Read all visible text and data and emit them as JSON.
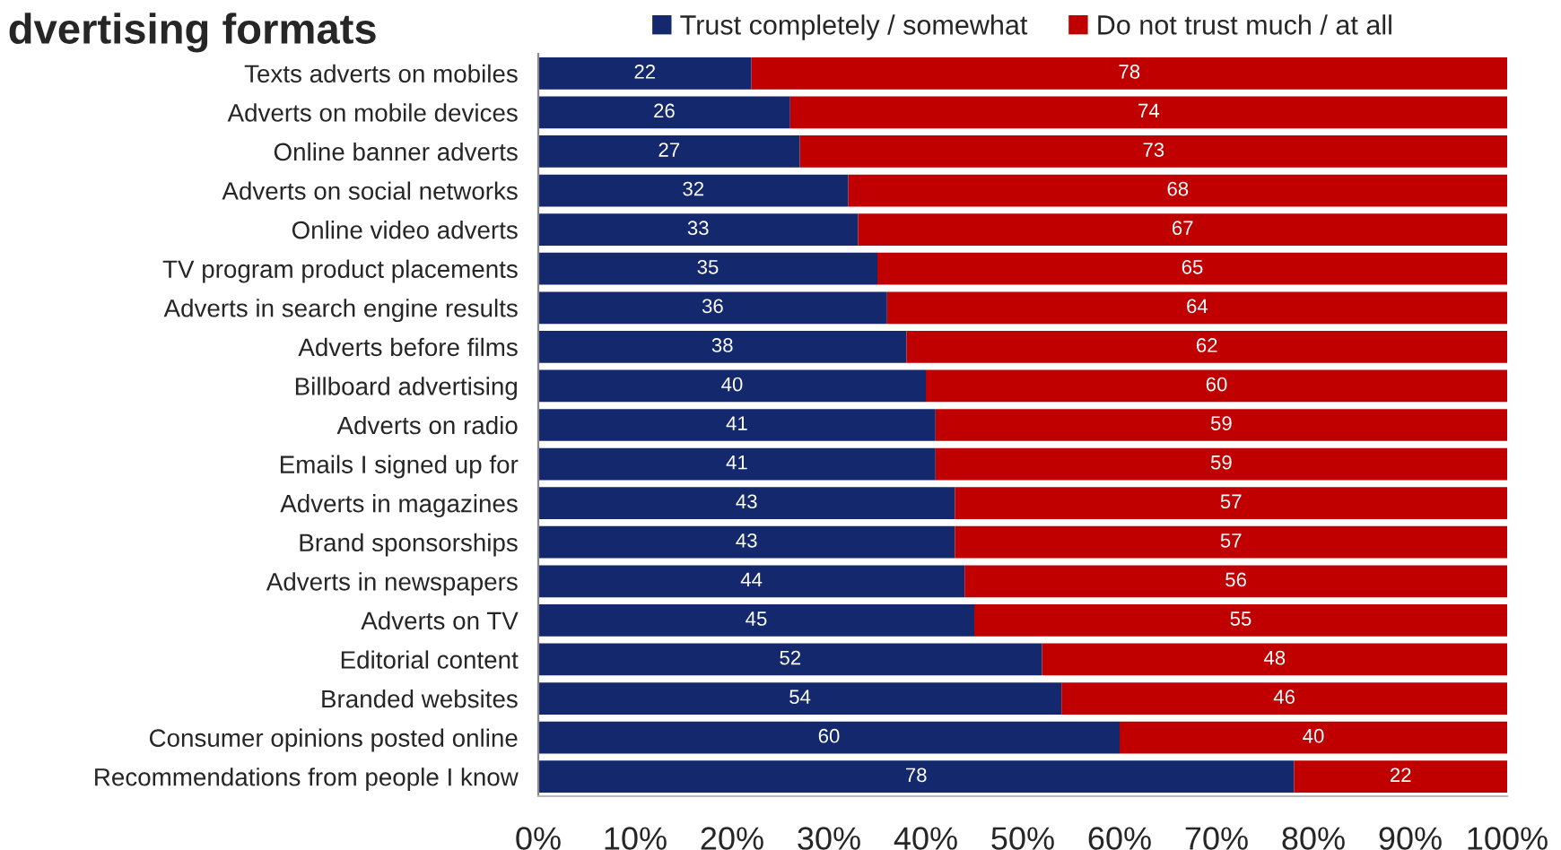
{
  "chart_data": {
    "type": "bar",
    "orientation": "horizontal",
    "stacked": true,
    "title": "dvertising formats",
    "categories": [
      "Texts adverts on mobiles",
      "Adverts on mobile devices",
      "Online banner adverts",
      "Adverts on social networks",
      "Online video adverts",
      "TV program product placements",
      "Adverts in search engine results",
      "Adverts before films",
      "Billboard advertising",
      "Adverts on radio",
      "Emails I signed up for",
      "Adverts in magazines",
      "Brand sponsorships",
      "Adverts in newspapers",
      "Adverts on TV",
      "Editorial content",
      "Branded websites",
      "Consumer opinions posted online",
      "Recommendations from people I know"
    ],
    "series": [
      {
        "name": "Trust completely / somewhat",
        "color": "#14286e",
        "values": [
          22,
          26,
          27,
          32,
          33,
          35,
          36,
          38,
          40,
          41,
          41,
          43,
          43,
          44,
          45,
          52,
          54,
          60,
          78
        ]
      },
      {
        "name": "Do not trust much / at all",
        "color": "#c00000",
        "values": [
          78,
          74,
          73,
          68,
          67,
          65,
          64,
          62,
          60,
          59,
          59,
          57,
          57,
          56,
          55,
          48,
          46,
          40,
          22
        ]
      }
    ],
    "xlim": [
      0,
      100
    ],
    "xticks": [
      {
        "value": 0,
        "label": "0%"
      },
      {
        "value": 10,
        "label": "10%"
      },
      {
        "value": 20,
        "label": "20%"
      },
      {
        "value": 30,
        "label": "30%"
      },
      {
        "value": 40,
        "label": "40%"
      },
      {
        "value": 50,
        "label": "50%"
      },
      {
        "value": 60,
        "label": "60%"
      },
      {
        "value": 70,
        "label": "70%"
      },
      {
        "value": 80,
        "label": "80%"
      },
      {
        "value": 90,
        "label": "90%"
      },
      {
        "value": 100,
        "label": "100%"
      }
    ],
    "data_labels": true,
    "legend": "top",
    "grid": false
  }
}
